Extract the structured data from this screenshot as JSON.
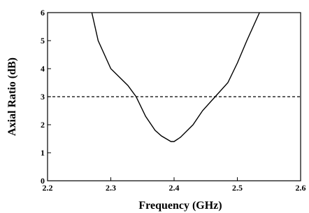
{
  "chart_data": {
    "type": "line",
    "x_label": "Frequency (GHz)",
    "y_label": "Axial Ratio (dB)",
    "x": [
      2.27,
      2.28,
      2.3,
      2.327,
      2.34,
      2.355,
      2.37,
      2.38,
      2.395,
      2.4,
      2.41,
      2.43,
      2.445,
      2.465,
      2.485,
      2.5,
      2.515,
      2.535
    ],
    "series": [
      {
        "color": "#000000",
        "values": [
          6,
          5,
          4,
          3.4,
          3,
          2.3,
          1.8,
          1.6,
          1.4,
          1.4,
          1.55,
          2,
          2.5,
          3,
          3.5,
          4.2,
          5,
          6
        ]
      }
    ],
    "reference_line": 3,
    "xlim": [
      2.2,
      2.6
    ],
    "xticks": [
      2.2,
      2.3,
      2.4,
      2.5,
      2.6
    ],
    "ylim": [
      0,
      6
    ],
    "yticks": [
      0,
      1,
      2,
      3,
      4,
      5,
      6
    ]
  }
}
